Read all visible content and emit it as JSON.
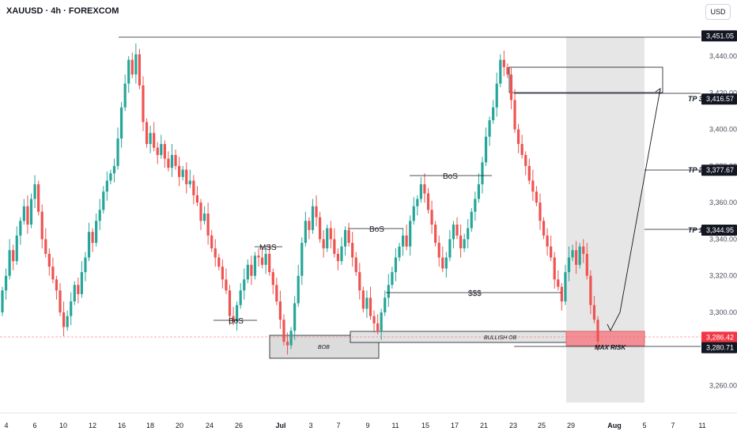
{
  "header": {
    "symbol": "XAUUSD · 4h · FOREXCOM",
    "currency": "USD"
  },
  "chart_data": {
    "type": "candlestick",
    "ylim": [
      3246,
      3458
    ],
    "y_ticks": [
      "3,440.00",
      "3,420.00",
      "3,400.00",
      "3,380.00",
      "3,360.00",
      "3,340.00",
      "3,320.00",
      "3,300.00",
      "3,260.00"
    ],
    "x_ticks": [
      "4",
      "6",
      "10",
      "12",
      "16",
      "18",
      "20",
      "24",
      "26",
      "Jul",
      "3",
      "7",
      "9",
      "11",
      "15",
      "17",
      "21",
      "23",
      "25",
      "29",
      "Aug",
      "5",
      "7",
      "11"
    ],
    "price_badges": [
      {
        "label": "3,451.05",
        "value": 3451.05,
        "style": "dark"
      },
      {
        "label": "3,416.57",
        "value": 3416.57,
        "style": "dark"
      },
      {
        "label": "3,377.67",
        "value": 3377.67,
        "style": "dark"
      },
      {
        "label": "3,344.95",
        "value": 3344.95,
        "style": "dark"
      },
      {
        "label": "3,286.42",
        "value": 3286.42,
        "style": "red"
      },
      {
        "label": "3,280.71",
        "value": 3280.71,
        "style": "dark"
      }
    ],
    "targets": [
      {
        "label": "TP 3",
        "value": 3416.57
      },
      {
        "label": "TP 2",
        "value": 3377.67
      },
      {
        "label": "TP 1",
        "value": 3344.95
      }
    ],
    "annotations": {
      "bos": [
        "BoS",
        "BoS",
        "BoS"
      ],
      "mss": "MSS",
      "liquidity": "$$$",
      "bob": "BOB",
      "bullish_ob": "BULLISH OB",
      "max_risk": "MAX RISK"
    },
    "colors": {
      "up": "#26a69a",
      "down": "#ef5350",
      "zone": "#d1d4dc",
      "risk": "#f7525f"
    }
  }
}
